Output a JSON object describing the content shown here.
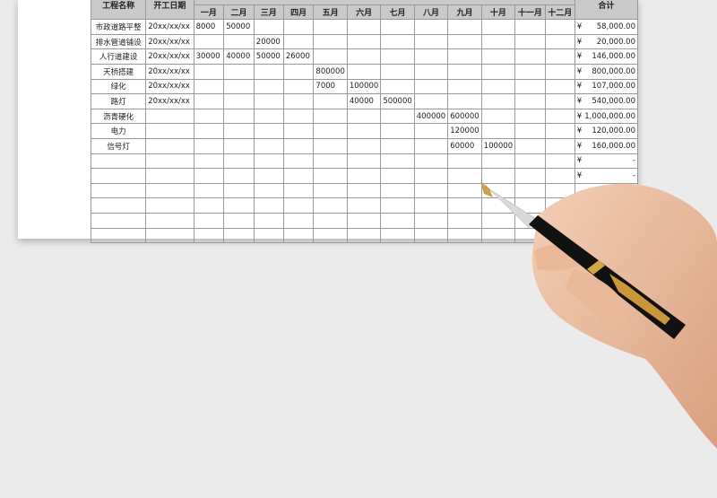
{
  "headers": {
    "name": "工程名称",
    "date": "开工日期",
    "total": "合计",
    "months": [
      "一月",
      "二月",
      "三月",
      "四月",
      "五月",
      "六月",
      "七月",
      "八月",
      "九月",
      "十月",
      "十一月",
      "十二月"
    ]
  },
  "currency": "¥",
  "rows": [
    {
      "name": "市政道路平整",
      "date": "20xx/xx/xx",
      "m": [
        "8000",
        "50000",
        "",
        "",
        "",
        "",
        "",
        "",
        "",
        "",
        "",
        ""
      ],
      "total": "58,000.00"
    },
    {
      "name": "排水管道铺设",
      "date": "20xx/xx/xx",
      "m": [
        "",
        "",
        "20000",
        "",
        "",
        "",
        "",
        "",
        "",
        "",
        "",
        ""
      ],
      "total": "20,000.00"
    },
    {
      "name": "人行道建设",
      "date": "20xx/xx/xx",
      "m": [
        "30000",
        "40000",
        "50000",
        "26000",
        "",
        "",
        "",
        "",
        "",
        "",
        "",
        ""
      ],
      "total": "146,000.00"
    },
    {
      "name": "天桥搭建",
      "date": "20xx/xx/xx",
      "m": [
        "",
        "",
        "",
        "",
        "800000",
        "",
        "",
        "",
        "",
        "",
        "",
        ""
      ],
      "total": "800,000.00"
    },
    {
      "name": "绿化",
      "date": "20xx/xx/xx",
      "m": [
        "",
        "",
        "",
        "",
        "7000",
        "100000",
        "",
        "",
        "",
        "",
        "",
        ""
      ],
      "total": "107,000.00"
    },
    {
      "name": "路灯",
      "date": "20xx/xx/xx",
      "m": [
        "",
        "",
        "",
        "",
        "",
        "40000",
        "500000",
        "",
        "",
        "",
        "",
        ""
      ],
      "total": "540,000.00"
    },
    {
      "name": "沥青硬化",
      "date": "",
      "m": [
        "",
        "",
        "",
        "",
        "",
        "",
        "",
        "400000",
        "600000",
        "",
        "",
        ""
      ],
      "total": "1,000,000.00"
    },
    {
      "name": "电力",
      "date": "",
      "m": [
        "",
        "",
        "",
        "",
        "",
        "",
        "",
        "",
        "120000",
        "",
        "",
        ""
      ],
      "total": "120,000.00"
    },
    {
      "name": "信号灯",
      "date": "",
      "m": [
        "",
        "",
        "",
        "",
        "",
        "",
        "",
        "",
        "60000",
        "100000",
        "",
        ""
      ],
      "total": "160,000.00"
    },
    {
      "name": "",
      "date": "",
      "m": [
        "",
        "",
        "",
        "",
        "",
        "",
        "",
        "",
        "",
        "",
        "",
        ""
      ],
      "total": "-"
    },
    {
      "name": "",
      "date": "",
      "m": [
        "",
        "",
        "",
        "",
        "",
        "",
        "",
        "",
        "",
        "",
        "",
        ""
      ],
      "total": "-"
    },
    {
      "name": "",
      "date": "",
      "m": [
        "",
        "",
        "",
        "",
        "",
        "",
        "",
        "",
        "",
        "",
        "",
        ""
      ],
      "total": ""
    },
    {
      "name": "",
      "date": "",
      "m": [
        "",
        "",
        "",
        "",
        "",
        "",
        "",
        "",
        "",
        "",
        "",
        ""
      ],
      "total": ""
    },
    {
      "name": "",
      "date": "",
      "m": [
        "",
        "",
        "",
        "",
        "",
        "",
        "",
        "",
        "",
        "",
        "",
        ""
      ],
      "total": ""
    },
    {
      "name": "",
      "date": "",
      "m": [
        "",
        "",
        "",
        "",
        "",
        "",
        "",
        "",
        "",
        "",
        "",
        ""
      ],
      "total": ""
    }
  ]
}
